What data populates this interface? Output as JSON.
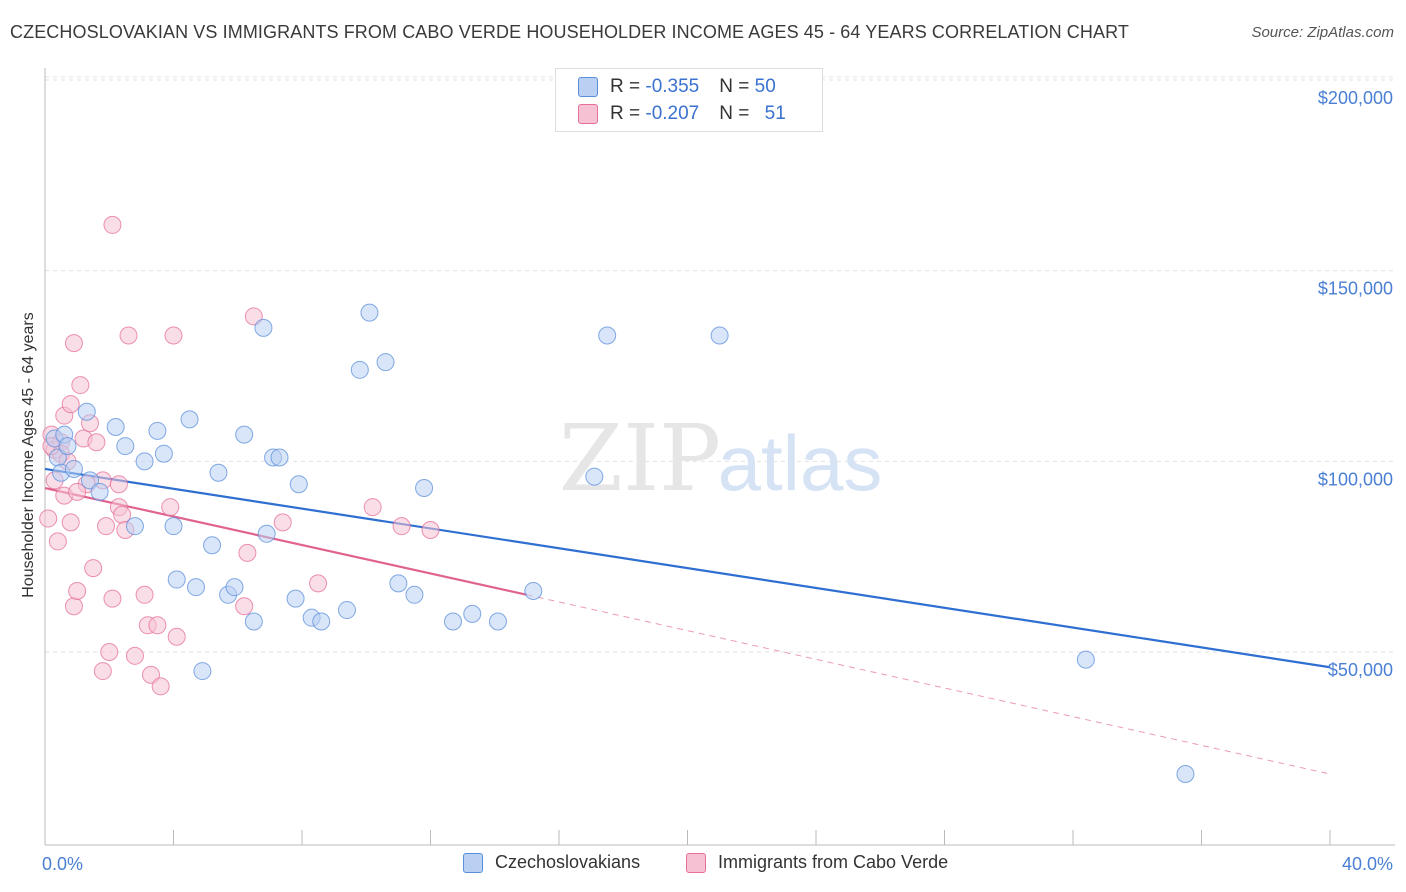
{
  "header": {
    "title": "CZECHOSLOVAKIAN VS IMMIGRANTS FROM CABO VERDE HOUSEHOLDER INCOME AGES 45 - 64 YEARS CORRELATION CHART",
    "source": "Source: ZipAtlas.com"
  },
  "watermark": {
    "zip": "ZIP",
    "atlas": "atlas"
  },
  "legend": {
    "rows": [
      {
        "r_label": "R = ",
        "r_value": "-0.355",
        "n_label": "N = ",
        "n_value": "50"
      },
      {
        "r_label": "R = ",
        "r_value": "-0.207",
        "n_label": "N = ",
        "n_value": "51"
      }
    ]
  },
  "chart_data": {
    "type": "scatter",
    "title": "CZECHOSLOVAKIAN VS IMMIGRANTS FROM CABO VERDE HOUSEHOLDER INCOME AGES 45 - 64 YEARS CORRELATION CHART",
    "xlabel": "",
    "ylabel": "Householder Income Ages 45 - 64 years",
    "xlim": [
      0,
      40
    ],
    "ylim": [
      0,
      205000
    ],
    "x_tick_labels": [
      {
        "value": 0,
        "label": "0.0%"
      },
      {
        "value": 40,
        "label": "40.0%"
      }
    ],
    "y_tick_labels": [
      {
        "value": 50000,
        "label": "$50,000"
      },
      {
        "value": 100000,
        "label": "$100,000"
      },
      {
        "value": 150000,
        "label": "$150,000"
      },
      {
        "value": 200000,
        "label": "$200,000"
      }
    ],
    "grid": "horizontal dashed",
    "legend_position": "top-center",
    "colors": {
      "czech": "#5b8fdb",
      "cabo": "#e66e98",
      "czech_fill": "#b9d0f2",
      "cabo_fill": "#f6c2d3"
    },
    "series": [
      {
        "name": "Czechoslovakians",
        "color": "#5b8fdb",
        "trend": {
          "x": [
            0,
            40
          ],
          "y": [
            98000,
            46000
          ],
          "style": "solid"
        },
        "points": [
          [
            0.3,
            106000
          ],
          [
            0.4,
            101000
          ],
          [
            0.5,
            97000
          ],
          [
            0.6,
            107000
          ],
          [
            0.7,
            104000
          ],
          [
            0.9,
            98000
          ],
          [
            1.3,
            113000
          ],
          [
            1.4,
            95000
          ],
          [
            1.7,
            92000
          ],
          [
            2.2,
            109000
          ],
          [
            2.5,
            104000
          ],
          [
            2.8,
            83000
          ],
          [
            3.1,
            100000
          ],
          [
            3.5,
            108000
          ],
          [
            3.7,
            102000
          ],
          [
            4.0,
            83000
          ],
          [
            4.1,
            69000
          ],
          [
            4.5,
            111000
          ],
          [
            4.7,
            67000
          ],
          [
            4.9,
            45000
          ],
          [
            5.2,
            78000
          ],
          [
            5.4,
            97000
          ],
          [
            5.7,
            65000
          ],
          [
            5.9,
            67000
          ],
          [
            6.2,
            107000
          ],
          [
            6.5,
            58000
          ],
          [
            6.8,
            135000
          ],
          [
            6.9,
            81000
          ],
          [
            7.1,
            101000
          ],
          [
            7.3,
            101000
          ],
          [
            7.8,
            64000
          ],
          [
            7.9,
            94000
          ],
          [
            8.3,
            59000
          ],
          [
            8.6,
            58000
          ],
          [
            9.4,
            61000
          ],
          [
            9.8,
            124000
          ],
          [
            10.1,
            139000
          ],
          [
            10.6,
            126000
          ],
          [
            11.0,
            68000
          ],
          [
            11.5,
            65000
          ],
          [
            11.8,
            93000
          ],
          [
            12.7,
            58000
          ],
          [
            13.3,
            60000
          ],
          [
            14.1,
            58000
          ],
          [
            15.2,
            66000
          ],
          [
            17.1,
            96000
          ],
          [
            17.5,
            133000
          ],
          [
            21.0,
            133000
          ],
          [
            32.4,
            48000
          ],
          [
            35.5,
            18000
          ]
        ]
      },
      {
        "name": "Immigrants from Cabo Verde",
        "color": "#e66e98",
        "trend": {
          "x": [
            0,
            15
          ],
          "y": [
            93000,
            65000
          ],
          "style": "solid",
          "extended_x": [
            15,
            40
          ],
          "extended_y": [
            65000,
            18000
          ],
          "extended_style": "dashed"
        },
        "points": [
          [
            0.1,
            85000
          ],
          [
            0.2,
            107000
          ],
          [
            0.3,
            103000
          ],
          [
            0.3,
            95000
          ],
          [
            0.4,
            79000
          ],
          [
            0.5,
            105000
          ],
          [
            0.5,
            102000
          ],
          [
            0.6,
            91000
          ],
          [
            0.6,
            112000
          ],
          [
            0.7,
            100000
          ],
          [
            0.8,
            115000
          ],
          [
            0.8,
            84000
          ],
          [
            0.9,
            131000
          ],
          [
            0.9,
            62000
          ],
          [
            1.0,
            66000
          ],
          [
            1.1,
            120000
          ],
          [
            1.2,
            106000
          ],
          [
            1.3,
            94000
          ],
          [
            1.4,
            110000
          ],
          [
            1.5,
            72000
          ],
          [
            1.6,
            105000
          ],
          [
            1.8,
            45000
          ],
          [
            1.8,
            95000
          ],
          [
            1.9,
            83000
          ],
          [
            2.0,
            50000
          ],
          [
            2.1,
            64000
          ],
          [
            2.1,
            162000
          ],
          [
            2.3,
            88000
          ],
          [
            2.4,
            86000
          ],
          [
            2.5,
            82000
          ],
          [
            2.6,
            133000
          ],
          [
            2.8,
            49000
          ],
          [
            3.1,
            65000
          ],
          [
            3.2,
            57000
          ],
          [
            3.3,
            44000
          ],
          [
            3.5,
            57000
          ],
          [
            3.6,
            41000
          ],
          [
            3.9,
            88000
          ],
          [
            4.0,
            133000
          ],
          [
            4.1,
            54000
          ],
          [
            6.2,
            62000
          ],
          [
            6.3,
            76000
          ],
          [
            6.5,
            138000
          ],
          [
            7.4,
            84000
          ],
          [
            8.5,
            68000
          ],
          [
            10.2,
            88000
          ],
          [
            11.1,
            83000
          ],
          [
            12.0,
            82000
          ],
          [
            1.0,
            92000
          ],
          [
            2.3,
            94000
          ],
          [
            0.2,
            104000
          ]
        ]
      }
    ]
  },
  "bottom_legend": {
    "items": [
      {
        "label": "Czechoslovakians"
      },
      {
        "label": "Immigrants from Cabo Verde"
      }
    ]
  }
}
